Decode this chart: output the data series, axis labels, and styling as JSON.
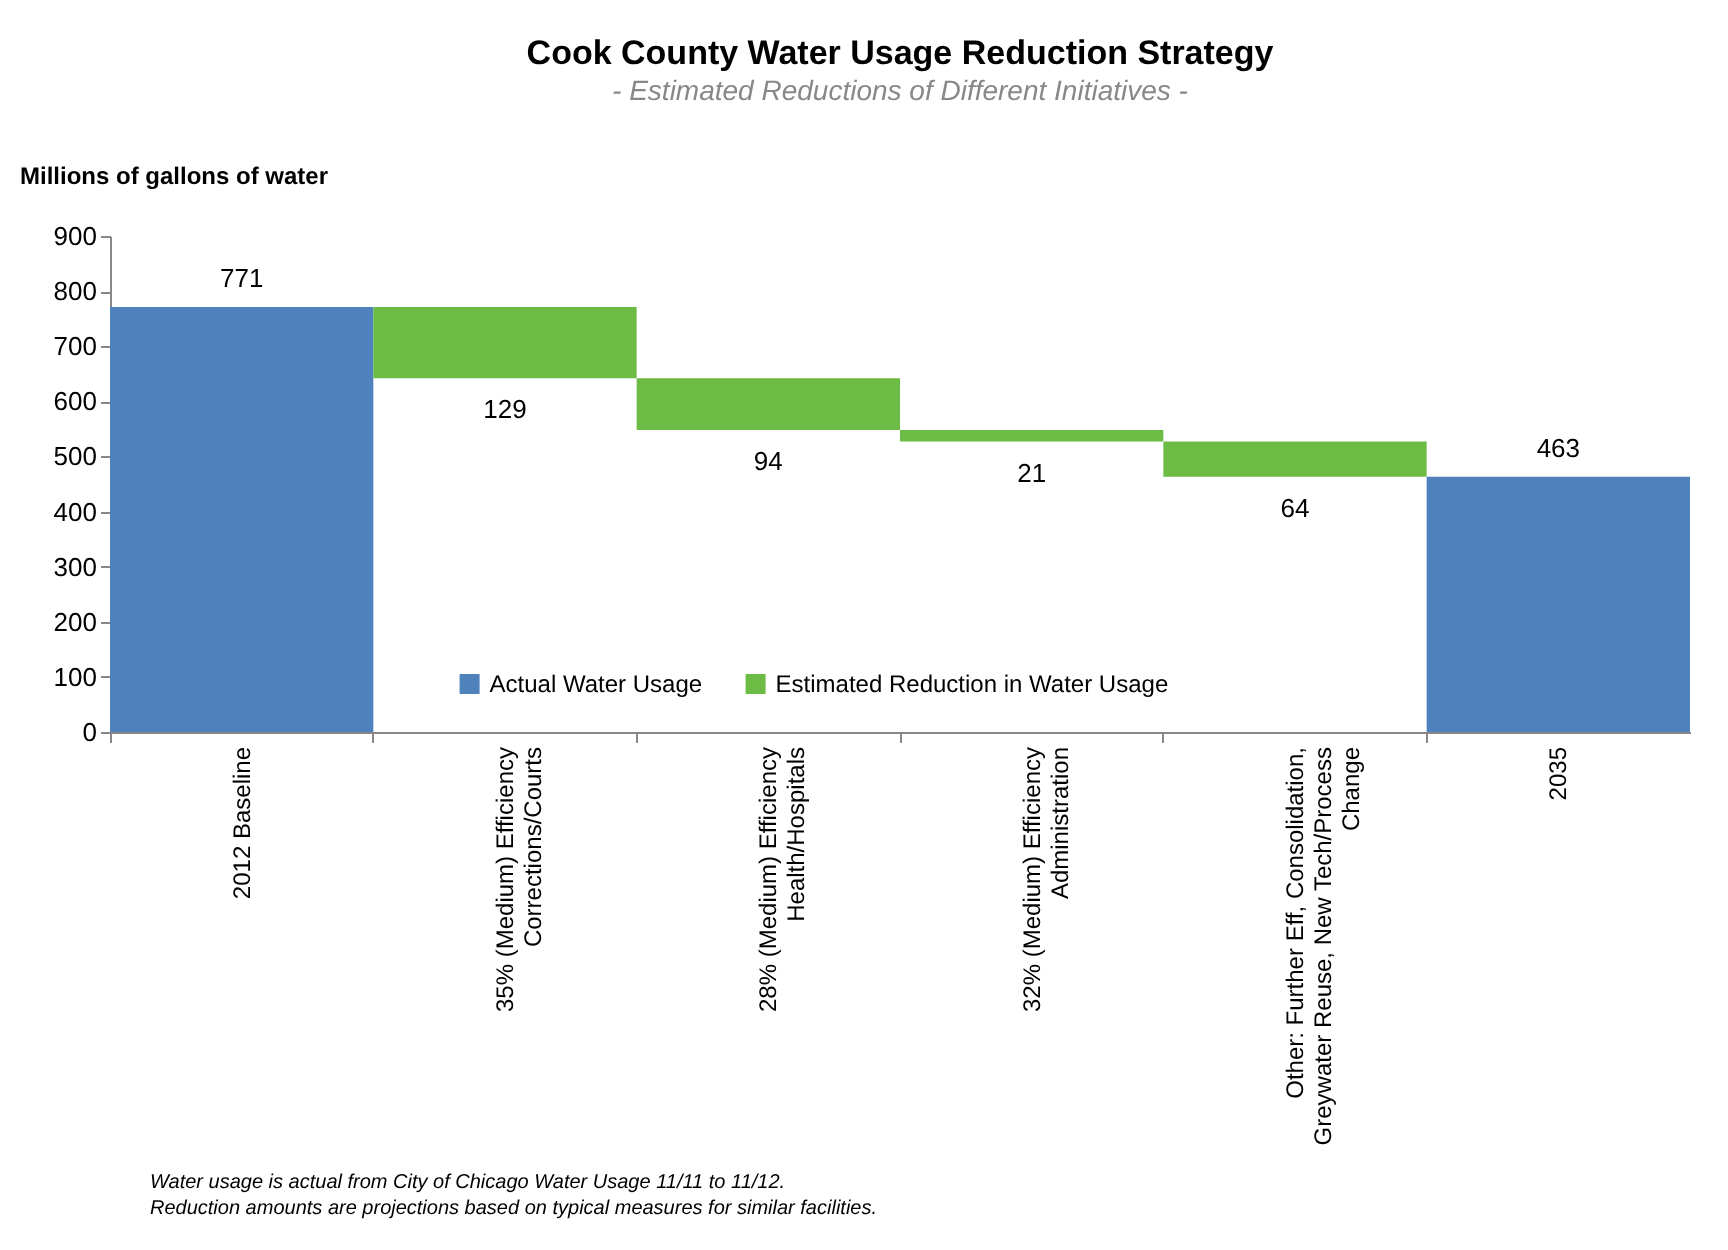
{
  "chart_data": {
    "type": "bar",
    "title": "Cook County Water Usage Reduction Strategy",
    "subtitle": "- Estimated Reductions of Different Initiatives -",
    "ylabel": "Millions of gallons of water",
    "categories": [
      "2012 Baseline",
      "35% (Medium) Efficiency Corrections/Courts",
      "28% (Medium) Efficiency Health/Hospitals",
      "32% (Medium) Efficiency Administration",
      "Other: Further Eff, Consolidation, Greywater Reuse, New Tech/Process Change",
      "2035"
    ],
    "series": [
      {
        "name": "Actual Water Usage",
        "color": "#4f81bd",
        "values": [
          771,
          null,
          null,
          null,
          null,
          463
        ],
        "base": [
          0,
          null,
          null,
          null,
          null,
          0
        ]
      },
      {
        "name": "Estimated Reduction in Water Usage",
        "color": "#6cbb45",
        "values": [
          null,
          129,
          94,
          21,
          64,
          null
        ],
        "base": [
          null,
          642,
          548,
          527,
          463,
          null
        ]
      }
    ],
    "ylim": [
      0,
      900
    ],
    "yticks": [
      0,
      100,
      200,
      300,
      400,
      500,
      600,
      700,
      800,
      900
    ],
    "data_labels": true,
    "grid": false,
    "legend": "bottom",
    "annotations": [
      "Water usage is actual from City of Chicago Water Usage 11/11 to 11/12.",
      "Reduction amounts are projections based on typical measures for similar facilities."
    ]
  }
}
